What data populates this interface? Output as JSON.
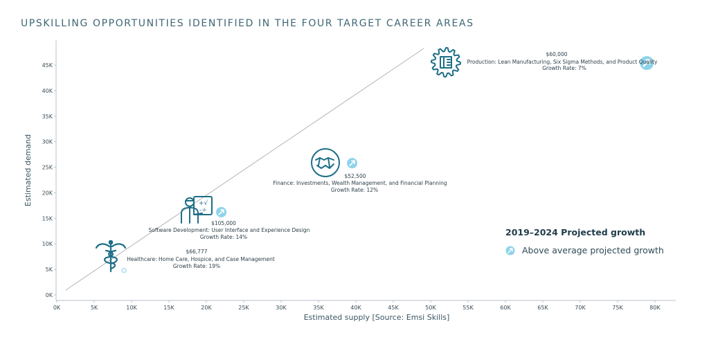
{
  "chart_data": {
    "type": "scatter",
    "title": "UPSKILLING OPPORTUNITIES IDENTIFIED IN THE FOUR TARGET CAREER AREAS",
    "xlabel": "Estimated supply [Source: Emsi Skills]",
    "ylabel": "Estimated demand",
    "xlim": [
      0,
      82000
    ],
    "ylim": [
      0,
      48000
    ],
    "x_ticks": [
      {
        "value": 0,
        "label": "0K"
      },
      {
        "value": 5000,
        "label": "5K"
      },
      {
        "value": 10000,
        "label": "10K"
      },
      {
        "value": 15000,
        "label": "15K"
      },
      {
        "value": 20000,
        "label": "20K"
      },
      {
        "value": 25000,
        "label": "25K"
      },
      {
        "value": 30000,
        "label": "30K"
      },
      {
        "value": 35000,
        "label": "35K"
      },
      {
        "value": 40000,
        "label": "40K"
      },
      {
        "value": 45000,
        "label": "45K"
      },
      {
        "value": 50000,
        "label": "50K"
      },
      {
        "value": 55000,
        "label": "55K"
      },
      {
        "value": 60000,
        "label": "60K"
      },
      {
        "value": 65000,
        "label": "65K"
      },
      {
        "value": 70000,
        "label": "70K"
      },
      {
        "value": 75000,
        "label": "75K"
      },
      {
        "value": 80000,
        "label": "80K"
      }
    ],
    "y_ticks": [
      {
        "value": 0,
        "label": "0K"
      },
      {
        "value": 5000,
        "label": "5K"
      },
      {
        "value": 10000,
        "label": "10K"
      },
      {
        "value": 15000,
        "label": "15K"
      },
      {
        "value": 20000,
        "label": "20K"
      },
      {
        "value": 25000,
        "label": "25K"
      },
      {
        "value": 30000,
        "label": "30K"
      },
      {
        "value": 35000,
        "label": "35K"
      },
      {
        "value": 40000,
        "label": "40K"
      },
      {
        "value": 45000,
        "label": "45K"
      }
    ],
    "reference_line": {
      "from": [
        1500,
        1800
      ],
      "to": [
        48500,
        48000
      ]
    },
    "points": [
      {
        "category": "healthcare",
        "x": 9000,
        "y": 4800,
        "above_average": false,
        "salary": "$66,777",
        "label": "Healthcare: Home Care, Hospice, and Case Management",
        "growth": "Growth Rate: 19%"
      },
      {
        "category": "software",
        "x": 22000,
        "y": 16200,
        "above_average": true,
        "salary": "$105,000",
        "label": "Software Development: User Interface and Experience Design",
        "growth": "Growth Rate: 14%"
      },
      {
        "category": "finance",
        "x": 39500,
        "y": 25800,
        "above_average": true,
        "salary": "$52,500",
        "label": "Finance: Investments, Wealth Management, and Financial Planning",
        "growth": "Growth Rate: 12%"
      },
      {
        "category": "production",
        "x": 78900,
        "y": 45400,
        "above_average": true,
        "salary": "$60,000",
        "label": "Production: Lean Manufacturing, Six Sigma Methods, and Product Quality",
        "growth": "Growth Rate: 7%"
      }
    ],
    "legend": {
      "title": "2019–2024 Projected growth",
      "items": [
        {
          "label": "Above average projected growth",
          "marker": "arrow-circle"
        }
      ],
      "placement": "bottom-right"
    },
    "grid": false
  },
  "colors": {
    "icon": "#1d6e86",
    "marker": "#8fd3ea",
    "marker_light": "#bfe6f3",
    "axis": "#b8c2c8",
    "reference_line": "#b3b3b3"
  },
  "icons": [
    "caduceus-icon",
    "developer-icon",
    "handshake-icon",
    "gear-icon",
    "arrow-up-right-icon"
  ]
}
